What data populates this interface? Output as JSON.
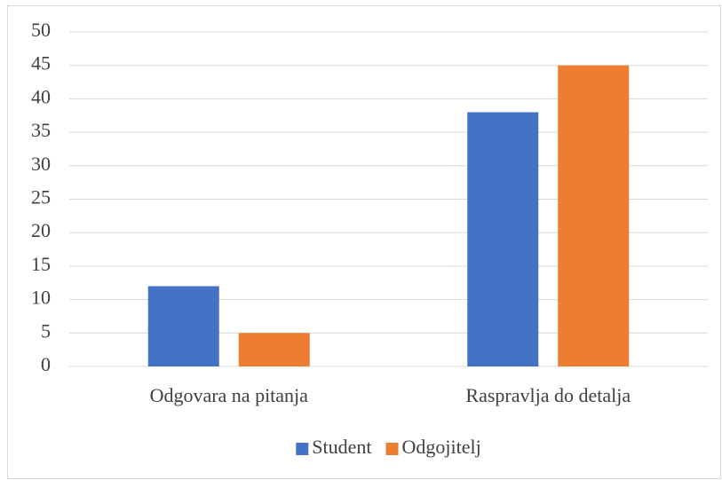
{
  "chart_data": {
    "type": "bar",
    "categories": [
      "Odgovara na pitanja",
      "Raspravlja do detalja"
    ],
    "series": [
      {
        "name": "Student",
        "color": "#4472c4",
        "values": [
          12,
          38
        ]
      },
      {
        "name": "Odgojitelj",
        "color": "#ed7d31",
        "values": [
          5,
          45
        ]
      }
    ],
    "ylim": [
      0,
      50
    ],
    "yticks": [
      0,
      5,
      10,
      15,
      20,
      25,
      30,
      35,
      40,
      45,
      50
    ],
    "grid": true,
    "legend": "bottom"
  }
}
